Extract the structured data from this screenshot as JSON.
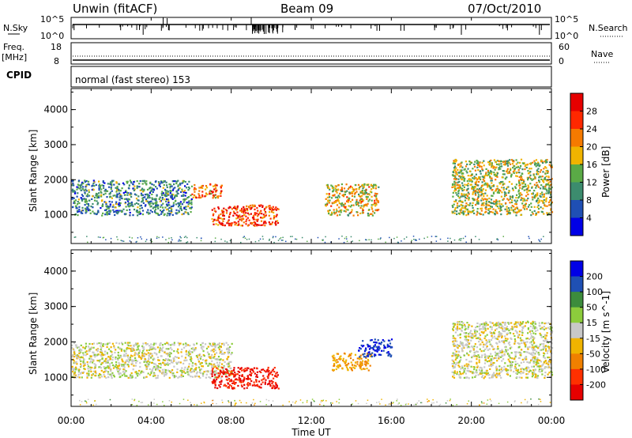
{
  "header": {
    "station": "Unwin (fitACF)",
    "beam": "Beam 09",
    "date": "07/Oct/2010"
  },
  "status_panels": {
    "nsky_label": "N.Sky",
    "nsky_ticks": [
      "10^5",
      "10^0"
    ],
    "nsearch_label": "N.Search",
    "nsearch_ticks": [
      "10^5",
      "10^0"
    ],
    "freq_label": "Freq.",
    "freq_unit": "[MHz]",
    "freq_ticks": [
      "18",
      "8"
    ],
    "nave_label": "Nave",
    "nave_ticks": [
      "60",
      "0"
    ],
    "cpid_label": "CPID",
    "cpid_text": "normal (fast stereo) 153"
  },
  "chart_data": [
    {
      "type": "heatmap",
      "quantity": "power",
      "xlabel": "Time UT",
      "ylabel": "Slant Range [km]",
      "xlim_hours": [
        0,
        24
      ],
      "ylim_km": [
        180,
        4600
      ],
      "y_ticks": [
        "1000",
        "2000",
        "3000",
        "4000"
      ],
      "colorbar": {
        "label": "Power [dB]",
        "ticks": [
          "4",
          "8",
          "12",
          "16",
          "20",
          "24",
          "28"
        ],
        "colors": [
          "#0000e6",
          "#1f4fb4",
          "#3c8c6e",
          "#5aaa46",
          "#f0b400",
          "#f57a00",
          "#ff2800",
          "#e60000"
        ]
      },
      "echo_regions": [
        {
          "start": "00:00",
          "end": "06:00",
          "range_km": [
            1000,
            2000
          ],
          "power_db": 10
        },
        {
          "start": "06:00",
          "end": "07:30",
          "range_km": [
            1500,
            1900
          ],
          "power_db": 22
        },
        {
          "start": "07:00",
          "end": "10:20",
          "range_km": [
            700,
            1300
          ],
          "power_db": 26
        },
        {
          "start": "12:40",
          "end": "15:20",
          "range_km": [
            1000,
            1900
          ],
          "power_db": 18
        },
        {
          "start": "19:00",
          "end": "24:00",
          "range_km": [
            1000,
            2600
          ],
          "power_db": 16
        }
      ]
    },
    {
      "type": "heatmap",
      "quantity": "velocity",
      "xlabel": "Time UT",
      "ylabel": "Slant Range [km]",
      "xlim_hours": [
        0,
        24
      ],
      "ylim_km": [
        180,
        4600
      ],
      "y_ticks": [
        "1000",
        "2000",
        "3000",
        "4000"
      ],
      "colorbar": {
        "label": "Velocity [m s^-1]",
        "ticks": [
          "200",
          "100",
          "50",
          "15",
          "-15",
          "-50",
          "-100",
          "-200"
        ],
        "colors": [
          "#0000e6",
          "#1f50b4",
          "#3c8c3c",
          "#8ccc3c",
          "#c8c8c8",
          "#f0b400",
          "#f08000",
          "#ff3000",
          "#e60000"
        ]
      },
      "echo_regions": [
        {
          "start": "00:00",
          "end": "08:00",
          "range_km": [
            1000,
            2000
          ],
          "velocity_ms": 0
        },
        {
          "start": "07:00",
          "end": "10:20",
          "range_km": [
            700,
            1300
          ],
          "velocity_ms": -200
        },
        {
          "start": "13:00",
          "end": "15:00",
          "range_km": [
            1200,
            1700
          ],
          "velocity_ms": -50
        },
        {
          "start": "14:20",
          "end": "16:00",
          "range_km": [
            1600,
            2100
          ],
          "velocity_ms": 200
        },
        {
          "start": "19:00",
          "end": "24:00",
          "range_km": [
            1000,
            2600
          ],
          "velocity_ms": 0
        }
      ]
    }
  ],
  "time_axis": {
    "ticks": [
      "00:00",
      "04:00",
      "08:00",
      "12:00",
      "16:00",
      "20:00",
      "00:00"
    ],
    "label": "Time UT"
  }
}
